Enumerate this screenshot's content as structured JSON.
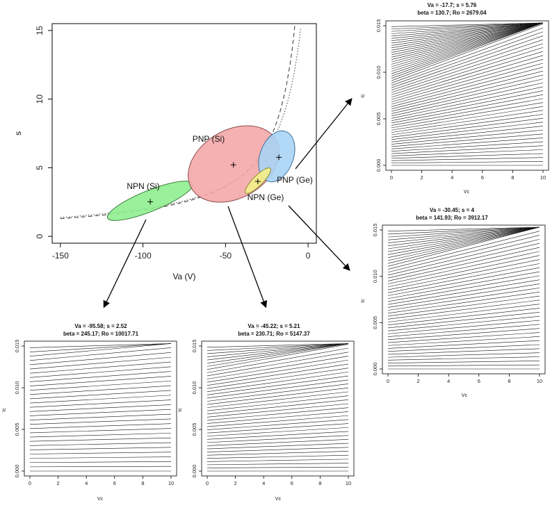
{
  "main_chart": {
    "type": "scatter",
    "xlabel": "Va (V)",
    "ylabel": "s",
    "xlim": [
      -155,
      5
    ],
    "ylim": [
      -0.5,
      15.5
    ],
    "xticks": [
      -150,
      -100,
      -50,
      0
    ],
    "yticks": [
      0,
      5,
      10,
      15
    ],
    "groups": [
      {
        "name": "NPN (Si)",
        "center": [
          -95.58,
          2.52
        ],
        "color": "#90ee90",
        "edge": "#3a7a3a"
      },
      {
        "name": "PNP (Si)",
        "center": [
          -45.22,
          5.21
        ],
        "color": "#f4a9a9",
        "edge": "#8a4a4a"
      },
      {
        "name": "PNP (Ge)",
        "center": [
          -17.7,
          5.76
        ],
        "color": "#a9d4f5",
        "edge": "#3e6e99"
      },
      {
        "name": "NPN (Ge)",
        "center": [
          -30.45,
          4.0
        ],
        "color": "#f5f08a",
        "edge": "#8a8a2a"
      }
    ],
    "curves": [
      {
        "name": "dotted",
        "style": "dotted",
        "k": 220,
        "x0": 10
      },
      {
        "name": "dashed",
        "style": "dashed",
        "k": 200,
        "x0": 5
      }
    ]
  },
  "chart_data": [
    {
      "type": "line",
      "title": "Va = -17.7;  s = 5.76",
      "subtitle": "beta = 130.7;  Ro = 2679.04",
      "xlabel": "Vc",
      "ylabel": "Ic",
      "xlim": [
        0,
        10
      ],
      "ylim": [
        0,
        0.015
      ],
      "xticks": [
        0,
        2,
        4,
        6,
        8,
        10
      ],
      "yticks": [
        "0.000",
        "0.005",
        "0.010",
        "0.015"
      ],
      "n_lines": 60,
      "slope_factor": 0.056
    },
    {
      "type": "line",
      "title": "Va = -30.45;  s = 4",
      "subtitle": "beta = 141.93;  Ro = 3912.17",
      "xlabel": "Vc",
      "ylabel": "Ic",
      "xlim": [
        0,
        10
      ],
      "ylim": [
        0,
        0.015
      ],
      "xticks": [
        0,
        2,
        4,
        6,
        8,
        10
      ],
      "yticks": [
        "0.000",
        "0.005",
        "0.010",
        "0.015"
      ],
      "n_lines": 48,
      "slope_factor": 0.033
    },
    {
      "type": "line",
      "title": "Va = -95.58;  s = 2.52",
      "subtitle": "beta = 245.17;  Ro = 10017.71",
      "xlabel": "Vc",
      "ylabel": "Ic",
      "xlim": [
        0,
        10
      ],
      "ylim": [
        0,
        0.015
      ],
      "xticks": [
        0,
        2,
        4,
        6,
        8,
        10
      ],
      "yticks": [
        "0.000",
        "0.005",
        "0.010",
        "0.015"
      ],
      "n_lines": 30,
      "slope_factor": 0.0105
    },
    {
      "type": "line",
      "title": "Va = -45.22;  s = 5.21",
      "subtitle": "beta = 230.71;  Ro = 5147.37",
      "xlabel": "Vc",
      "ylabel": "Ic",
      "xlim": [
        0,
        10
      ],
      "ylim": [
        0,
        0.015
      ],
      "xticks": [
        0,
        2,
        4,
        6,
        8,
        10
      ],
      "yticks": [
        "0.000",
        "0.005",
        "0.010",
        "0.015"
      ],
      "n_lines": 40,
      "slope_factor": 0.022
    }
  ]
}
